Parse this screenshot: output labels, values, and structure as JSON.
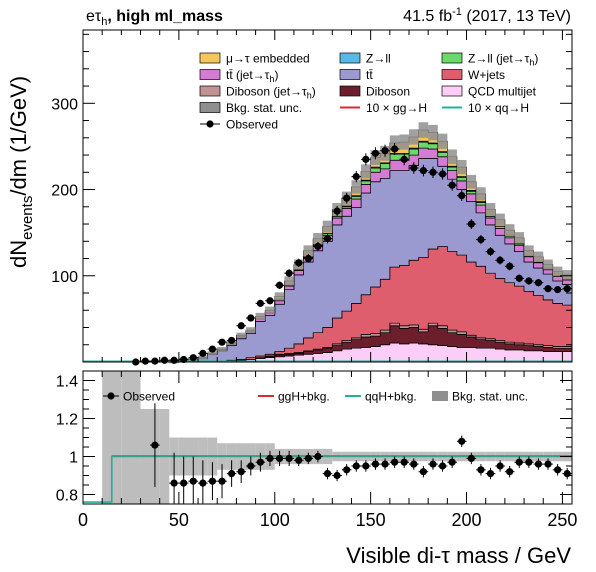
{
  "header": {
    "channel_main": "eτ",
    "channel_sub": "h",
    "channel_rest": ", high ml_mass",
    "lumi_main": "41.5 fb",
    "lumi_sup": "-1",
    "lumi_rest": " (2017, 13 TeV)"
  },
  "axes": {
    "ylabel_main": "dN",
    "ylabel_sub": "events",
    "ylabel_rest": "/dm (1/GeV)",
    "xlabel": "Visible di-τ mass / GeV"
  },
  "legend_main": [
    {
      "text": "μ→τ embedded",
      "color": "#f4c75c",
      "style": "box"
    },
    {
      "text": "Z→ll",
      "color": "#5ab8e4",
      "style": "box"
    },
    {
      "text": "Z→ll (jet→τ",
      "sub": "h",
      "close": ")",
      "color": "#6ad96a",
      "style": "box"
    },
    {
      "text": "tt̄ (jet→τ",
      "sub": "h",
      "close": ")",
      "color": "#d67bd3",
      "style": "box"
    },
    {
      "text": "tt̄",
      "color": "#9b9ad0",
      "style": "box"
    },
    {
      "text": "W+jets",
      "color": "#de5e6e",
      "style": "box"
    },
    {
      "text": "Diboson (jet→τ",
      "sub": "h",
      "close": ")",
      "color": "#c29393",
      "style": "box"
    },
    {
      "text": "Diboson",
      "color": "#6c1e2c",
      "style": "box"
    },
    {
      "text": "QCD multijet",
      "color": "#fccdf7",
      "style": "box"
    },
    {
      "text": "Bkg. stat. unc.",
      "color": "#8f8f8f",
      "style": "box"
    },
    {
      "text": "10 × gg→H",
      "color": "#e0272f",
      "style": "line"
    },
    {
      "text": "10 × qq→H",
      "color": "#1eb298",
      "style": "line"
    },
    {
      "text": "Observed",
      "color": "#000000",
      "style": "marker"
    }
  ],
  "legend_ratio": [
    {
      "text": "Observed",
      "color": "#000000",
      "style": "marker"
    },
    {
      "text": "ggH+bkg.",
      "color": "#e0272f",
      "style": "line"
    },
    {
      "text": "qqH+bkg.",
      "color": "#1eb298",
      "style": "line"
    },
    {
      "text": "Bkg. stat. unc.",
      "color": "#8f8f8f",
      "style": "box"
    }
  ],
  "chart_data": {
    "type": "bar",
    "x_label": "Visible di-τ mass / GeV",
    "y_label": "dNevents/dm (1/GeV)",
    "bin_edges": [
      0,
      10,
      20,
      30,
      40,
      45,
      50,
      55,
      60,
      65,
      70,
      75,
      80,
      85,
      90,
      95,
      100,
      105,
      110,
      115,
      120,
      125,
      130,
      135,
      140,
      145,
      150,
      155,
      160,
      165,
      170,
      175,
      180,
      185,
      190,
      195,
      200,
      205,
      210,
      215,
      220,
      225,
      230,
      235,
      240,
      245,
      250,
      255
    ],
    "xlim": [
      0,
      255
    ],
    "ylim": [
      0,
      385
    ],
    "y_ticks": [
      100,
      200,
      300
    ],
    "x_ticks": [
      0,
      50,
      100,
      150,
      200,
      250
    ],
    "stack_order": [
      "QCD multijet",
      "Diboson",
      "Diboson (jet→τh)",
      "W+jets",
      "tt̄",
      "tt̄ (jet→τh)",
      "Z→ll (jet→τh)",
      "Z→ll",
      "μ→τ embedded"
    ],
    "stack_colors": [
      "#fccdf7",
      "#6c1e2c",
      "#c29393",
      "#de5e6e",
      "#9b9ad0",
      "#d67bd3",
      "#6ad96a",
      "#5ab8e4",
      "#f4c75c"
    ],
    "series": [
      {
        "name": "QCD multijet",
        "values": [
          0,
          0,
          0,
          0,
          0,
          0,
          0,
          0,
          0,
          0,
          0,
          1,
          2,
          3,
          4,
          5,
          6,
          7,
          8,
          9,
          10,
          11,
          13,
          15,
          16,
          17,
          18,
          20,
          22,
          21,
          22,
          21,
          20,
          19,
          18,
          17,
          17,
          16,
          16,
          15,
          14,
          14,
          13,
          13,
          12,
          12,
          12
        ]
      },
      {
        "name": "Diboson",
        "values": [
          0,
          0,
          0,
          0,
          0,
          0,
          0,
          0,
          0,
          0,
          0,
          0,
          0,
          0,
          1,
          1,
          2,
          2,
          2,
          3,
          4,
          5,
          6,
          8,
          10,
          12,
          12,
          14,
          20,
          18,
          18,
          14,
          22,
          20,
          16,
          15,
          12,
          10,
          9,
          8,
          7,
          6,
          6,
          5,
          5,
          4,
          4
        ]
      },
      {
        "name": "Diboson (jet→τh)",
        "values": [
          0,
          0,
          0,
          0,
          0,
          0,
          0,
          0,
          0,
          0,
          0,
          0,
          0,
          0,
          0,
          1,
          1,
          1,
          1,
          1,
          1,
          1,
          2,
          2,
          2,
          3,
          3,
          3,
          3,
          3,
          3,
          3,
          3,
          3,
          3,
          3,
          2,
          2,
          2,
          2,
          2,
          2,
          2,
          2,
          2,
          2,
          2
        ]
      },
      {
        "name": "W+jets",
        "values": [
          0,
          0,
          0,
          0,
          0,
          0,
          0,
          0,
          0,
          1,
          1,
          1,
          1,
          2,
          2,
          2,
          3,
          6,
          10,
          15,
          19,
          23,
          30,
          34,
          40,
          46,
          54,
          59,
          65,
          70,
          75,
          83,
          86,
          92,
          91,
          89,
          85,
          83,
          76,
          72,
          69,
          66,
          61,
          57,
          53,
          50,
          48
        ]
      },
      {
        "name": "tt̄",
        "values": [
          0,
          0,
          0,
          0,
          0,
          1,
          2,
          3,
          4,
          8,
          12,
          17,
          24,
          28,
          40,
          45,
          55,
          68,
          80,
          88,
          95,
          100,
          108,
          110,
          111,
          118,
          122,
          117,
          112,
          110,
          110,
          115,
          105,
          93,
          84,
          76,
          70,
          62,
          56,
          50,
          45,
          40,
          34,
          32,
          30,
          26,
          24
        ]
      },
      {
        "name": "tt̄ (jet→τh)",
        "values": [
          0,
          0,
          0,
          0,
          0,
          0,
          0,
          0,
          0,
          0,
          1,
          1,
          2,
          2,
          3,
          3,
          4,
          4,
          5,
          5,
          6,
          7,
          8,
          9,
          10,
          10,
          11,
          11,
          12,
          12,
          12,
          12,
          11,
          11,
          10,
          10,
          9,
          9,
          8,
          8,
          7,
          7,
          6,
          6,
          5,
          5,
          5
        ]
      },
      {
        "name": "Z→ll (jet→τh)",
        "values": [
          0,
          0,
          0,
          0,
          0,
          0,
          0,
          0,
          0,
          0,
          0,
          0,
          0,
          0,
          0,
          0,
          1,
          1,
          1,
          1,
          1,
          2,
          2,
          2,
          3,
          4,
          5,
          6,
          7,
          7,
          7,
          7,
          6,
          5,
          4,
          4,
          3,
          3,
          2,
          2,
          2,
          2,
          1,
          1,
          1,
          1,
          1
        ]
      },
      {
        "name": "Z→ll",
        "values": [
          0,
          0,
          0,
          0,
          0,
          0,
          0,
          0,
          0,
          0,
          0,
          0,
          0,
          0,
          0,
          0,
          0,
          0,
          0,
          0,
          0,
          0,
          0,
          1,
          1,
          1,
          1,
          1,
          1,
          1,
          1,
          1,
          1,
          1,
          1,
          1,
          1,
          1,
          0,
          0,
          0,
          0,
          0,
          0,
          0,
          0,
          0
        ]
      },
      {
        "name": "μ→τ embedded",
        "values": [
          0,
          0,
          0,
          0,
          0,
          0,
          0,
          0,
          1,
          1,
          1,
          2,
          2,
          2,
          3,
          3,
          4,
          5,
          6,
          7,
          7,
          8,
          8,
          9,
          10,
          10,
          11,
          11,
          12,
          13,
          13,
          13,
          12,
          12,
          11,
          11,
          10,
          9,
          8,
          8,
          7,
          7,
          6,
          6,
          5,
          5,
          5
        ]
      }
    ],
    "observed": {
      "x": [
        27.5,
        32.5,
        37.5,
        42.5,
        47.5,
        52.5,
        57.5,
        62.5,
        67.5,
        72.5,
        77.5,
        82.5,
        87.5,
        92.5,
        97.5,
        102.5,
        107.5,
        112.5,
        117.5,
        122.5,
        127.5,
        132.5,
        137.5,
        142.5,
        147.5,
        152.5,
        157.5,
        162.5,
        167.5,
        172.5,
        177.5,
        182.5,
        187.5,
        192.5,
        197.5,
        202.5,
        207.5,
        212.5,
        217.5,
        222.5,
        227.5,
        232.5,
        237.5,
        242.5,
        247.5,
        252.5
      ],
      "y": [
        0,
        1,
        1,
        2,
        2,
        3,
        5,
        10,
        15,
        23,
        25,
        42,
        51,
        68,
        71,
        89,
        103,
        115,
        120,
        134,
        143,
        175,
        190,
        215,
        235,
        242,
        245,
        247,
        235,
        225,
        222,
        220,
        218,
        205,
        193,
        160,
        142,
        128,
        118,
        111,
        97,
        94,
        92,
        85,
        84,
        85
      ]
    },
    "ratio": {
      "ylim": [
        0.75,
        1.45
      ],
      "y_ticks": [
        0.8,
        1,
        1.2,
        1.4
      ],
      "x": [
        37.5,
        47.5,
        52.5,
        57.5,
        62.5,
        67.5,
        72.5,
        77.5,
        82.5,
        87.5,
        92.5,
        97.5,
        102.5,
        107.5,
        112.5,
        117.5,
        122.5,
        127.5,
        132.5,
        137.5,
        142.5,
        147.5,
        152.5,
        157.5,
        162.5,
        167.5,
        172.5,
        177.5,
        182.5,
        187.5,
        192.5,
        197.5,
        202.5,
        207.5,
        212.5,
        217.5,
        222.5,
        227.5,
        232.5,
        237.5,
        242.5,
        247.5,
        252.5
      ],
      "y": [
        1.06,
        0.86,
        0.86,
        0.87,
        0.86,
        0.87,
        0.87,
        0.91,
        0.92,
        0.95,
        0.97,
        0.99,
        0.99,
        0.99,
        0.98,
        0.99,
        1.0,
        0.91,
        0.9,
        0.93,
        0.95,
        0.95,
        0.96,
        0.96,
        0.97,
        0.97,
        0.96,
        0.92,
        0.96,
        0.95,
        0.97,
        1.08,
        0.99,
        0.93,
        0.91,
        0.95,
        0.92,
        0.97,
        0.97,
        0.96,
        0.96,
        0.93,
        0.91
      ],
      "err": [
        0.22,
        0.16,
        0.14,
        0.13,
        0.12,
        0.1,
        0.09,
        0.07,
        0.06,
        0.05,
        0.05,
        0.04,
        0.04,
        0.04,
        0.03,
        0.03,
        0.03,
        0.03,
        0.03,
        0.03,
        0.03,
        0.03,
        0.03,
        0.03,
        0.03,
        0.03,
        0.03,
        0.03,
        0.03,
        0.03,
        0.03,
        0.03,
        0.03,
        0.03,
        0.03,
        0.03,
        0.03,
        0.03,
        0.03,
        0.03,
        0.03,
        0.03,
        0.03
      ]
    }
  }
}
